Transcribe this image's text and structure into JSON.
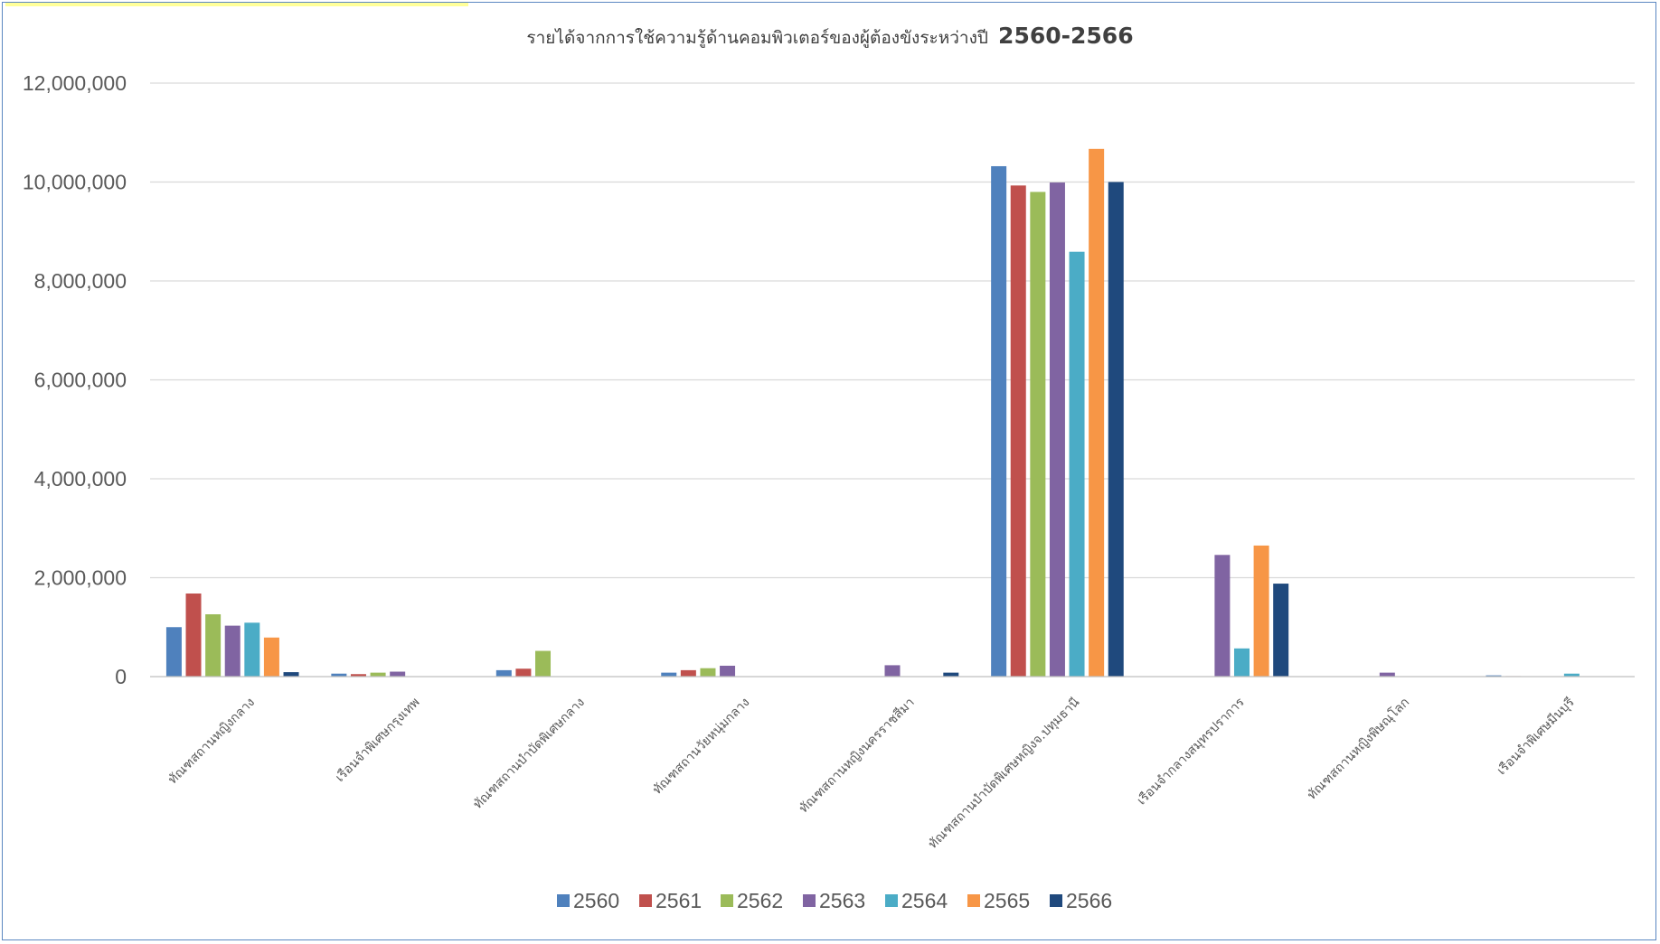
{
  "colors": {
    "frame_border": "#5b87c1",
    "gridline": "#d9d9d9",
    "text": "#595959",
    "title": "#404040",
    "selection_highlight": "#ffff99"
  },
  "chart_data": {
    "type": "bar",
    "title": "รายได้จากการใช้ความรู้ด้านคอมพิวเตอร์ของผู้ต้องขังระหว่างปี",
    "title_year": "2560-2566",
    "xlabel": "",
    "ylabel": "",
    "ylim": [
      0,
      12000000
    ],
    "yticks": [
      0,
      2000000,
      4000000,
      6000000,
      8000000,
      10000000,
      12000000
    ],
    "ytick_labels": [
      "0",
      "2,000,000",
      "4,000,000",
      "6,000,000",
      "8,000,000",
      "10,000,000",
      "12,000,000"
    ],
    "grid": true,
    "legend_position": "bottom",
    "categories": [
      "ทัณฑสถานหญิงกลาง",
      "เรือนจำพิเศษกรุงเทพ",
      "ทัณฑสถานบำบัดพิเศษกลาง",
      "ทัณฑสถานวัยหนุ่มกลาง",
      "ทัณฑสถานหญิงนครราชสีมา",
      "ทัณฑสถานบำบัดพิเศษหญิงจ.ปทุมธานี",
      "เรือนจำกลางสมุทรปราการ",
      "ทัณฑสถานหญิงพิษณุโลก",
      "เรือนจำพิเศษมีนบุรี"
    ],
    "series": [
      {
        "name": "2560",
        "color": "#4f81bd",
        "values": [
          1000000,
          60000,
          130000,
          80000,
          0,
          10320000,
          0,
          0,
          25000
        ]
      },
      {
        "name": "2561",
        "color": "#c0504d",
        "values": [
          1680000,
          50000,
          160000,
          130000,
          0,
          9930000,
          0,
          0,
          10000
        ]
      },
      {
        "name": "2562",
        "color": "#9bbb59",
        "values": [
          1260000,
          80000,
          520000,
          170000,
          0,
          9800000,
          0,
          0,
          5000
        ]
      },
      {
        "name": "2563",
        "color": "#8064a2",
        "values": [
          1030000,
          100000,
          0,
          220000,
          230000,
          9990000,
          2460000,
          80000,
          0
        ]
      },
      {
        "name": "2564",
        "color": "#4bacc6",
        "values": [
          1090000,
          0,
          0,
          0,
          0,
          8590000,
          570000,
          0,
          60000
        ]
      },
      {
        "name": "2565",
        "color": "#f79646",
        "values": [
          790000,
          0,
          0,
          0,
          0,
          10670000,
          2650000,
          0,
          0
        ]
      },
      {
        "name": "2566",
        "color": "#1f497d",
        "values": [
          90000,
          0,
          0,
          0,
          80000,
          10000000,
          1880000,
          0,
          0
        ]
      }
    ]
  }
}
